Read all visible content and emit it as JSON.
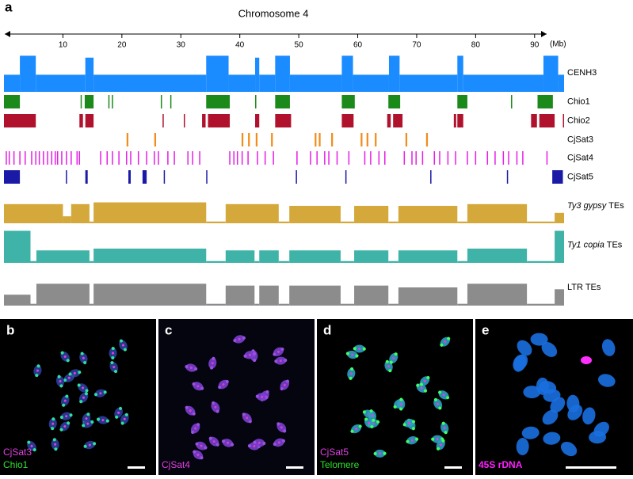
{
  "chart_data": {
    "type": "genome-tracks",
    "panel": "a",
    "title": "Chromosome 4",
    "x_unit": "(Mb)",
    "xlim": [
      0,
      95
    ],
    "xticks": [
      10,
      20,
      30,
      40,
      50,
      60,
      70,
      80,
      90
    ],
    "tracks": [
      {
        "name": "CENH3",
        "color": "#1a8cff",
        "kind": "signal",
        "segments": [
          [
            0,
            2.7,
            0.45
          ],
          [
            2.7,
            5.4,
            0.95
          ],
          [
            5.4,
            13.8,
            0.45
          ],
          [
            13.8,
            15.2,
            0.9
          ],
          [
            15.2,
            34.3,
            0.45
          ],
          [
            34.3,
            38.1,
            0.95
          ],
          [
            38.1,
            42.6,
            0.45
          ],
          [
            42.6,
            43.3,
            0.9
          ],
          [
            43.3,
            46,
            0.45
          ],
          [
            46,
            48.5,
            0.95
          ],
          [
            48.5,
            57.3,
            0.45
          ],
          [
            57.3,
            59.2,
            0.95
          ],
          [
            59.2,
            65.3,
            0.45
          ],
          [
            65.3,
            67.1,
            0.95
          ],
          [
            67.1,
            76.9,
            0.45
          ],
          [
            76.9,
            77.9,
            0.95
          ],
          [
            77.9,
            91.5,
            0.45
          ],
          [
            91.5,
            94,
            0.95
          ],
          [
            94,
            95,
            0.45
          ]
        ]
      },
      {
        "name": "Chio1",
        "color": "#1b8a1b",
        "kind": "intervals",
        "intervals": [
          [
            0,
            2.7
          ],
          [
            13,
            13.2
          ],
          [
            13.7,
            15.2
          ],
          [
            17.7,
            17.9
          ],
          [
            18.3,
            18.5
          ],
          [
            26.6,
            26.8
          ],
          [
            28.2,
            28.4
          ],
          [
            34.3,
            38.3
          ],
          [
            42.6,
            42.8
          ],
          [
            46,
            48.5
          ],
          [
            57.3,
            59.5
          ],
          [
            65.2,
            67.2
          ],
          [
            76.9,
            78.6
          ],
          [
            86,
            86.2
          ],
          [
            90.5,
            93.1
          ]
        ]
      },
      {
        "name": "Chio2",
        "color": "#b0122e",
        "kind": "intervals",
        "intervals": [
          [
            0,
            5.4
          ],
          [
            12.8,
            13.4
          ],
          [
            13.8,
            15.2
          ],
          [
            26.9,
            27.1
          ],
          [
            30.5,
            30.7
          ],
          [
            33.6,
            34.2
          ],
          [
            34.6,
            38.3
          ],
          [
            42.6,
            43.3
          ],
          [
            46,
            48.7
          ],
          [
            57.3,
            59.3
          ],
          [
            65,
            65.6
          ],
          [
            66,
            67.6
          ],
          [
            76.3,
            76.7
          ],
          [
            76.9,
            77.9
          ],
          [
            89.4,
            90.4
          ],
          [
            90.8,
            93.4
          ],
          [
            94.8,
            95
          ]
        ]
      },
      {
        "name": "CjSat3",
        "color": "#f28c1b",
        "kind": "intervals",
        "intervals": [
          [
            20.8,
            21.1
          ],
          [
            25.5,
            25.8
          ],
          [
            40.3,
            40.6
          ],
          [
            41.4,
            41.7
          ],
          [
            42.7,
            43
          ],
          [
            45.3,
            45.6
          ],
          [
            52.7,
            53
          ],
          [
            53.4,
            53.7
          ],
          [
            55.5,
            55.8
          ],
          [
            60.5,
            60.8
          ],
          [
            61.5,
            61.8
          ],
          [
            62.9,
            63.2
          ],
          [
            68.1,
            68.4
          ],
          [
            71.6,
            71.9
          ]
        ]
      },
      {
        "name": "CjSat4",
        "color": "#e61ee6",
        "kind": "positions",
        "positions": [
          0.4,
          0.9,
          1.7,
          2.7,
          3.6,
          4.7,
          5.4,
          6,
          6.7,
          7.4,
          8.1,
          8.7,
          9.1,
          9.8,
          10.6,
          11.4,
          12.4,
          12.8,
          16.4,
          17.5,
          18.4,
          19.5,
          20.8,
          21.5,
          22.8,
          24.2,
          25.5,
          26.2,
          27.8,
          28.9,
          31.2,
          32,
          33.2,
          38.3,
          39,
          39.6,
          40.4,
          41.4,
          43,
          44.3,
          45.7,
          49.7,
          52,
          53.1,
          54.4,
          55.1,
          56.5,
          58.5,
          61.2,
          62.2,
          63.6,
          64.6,
          67.9,
          69.2,
          69.9,
          71,
          73,
          73.9,
          75.3,
          76.6,
          78.6,
          80,
          82,
          83.3,
          84.7,
          85.6,
          87,
          88,
          92.1
        ]
      },
      {
        "name": "CjSat5",
        "color": "#1a1aa6",
        "kind": "intervals",
        "intervals": [
          [
            0,
            2.7
          ],
          [
            10.5,
            10.7
          ],
          [
            13.8,
            14.2
          ],
          [
            21.1,
            21.5
          ],
          [
            23.5,
            24.2
          ],
          [
            27.1,
            27.3
          ],
          [
            34.3,
            34.5
          ],
          [
            49.5,
            49.7
          ],
          [
            57.9,
            58.1
          ],
          [
            72.3,
            72.5
          ],
          [
            85.3,
            85.5
          ],
          [
            93,
            94.8
          ]
        ]
      },
      {
        "name": {
          "italic": "Ty3 gypsy",
          "rest": "TEs"
        },
        "color": "#d4a83a",
        "kind": "signal",
        "segments": [
          [
            0,
            10,
            0.55
          ],
          [
            10,
            11.4,
            0.2
          ],
          [
            11.4,
            14.5,
            0.55
          ],
          [
            14.5,
            15.2,
            0.05
          ],
          [
            15.2,
            34.3,
            0.6
          ],
          [
            34.3,
            37.6,
            0.05
          ],
          [
            37.6,
            46.6,
            0.55
          ],
          [
            46.6,
            48.4,
            0.05
          ],
          [
            48.4,
            57.1,
            0.5
          ],
          [
            57.1,
            59.4,
            0.05
          ],
          [
            59.4,
            65.2,
            0.5
          ],
          [
            65.2,
            66.9,
            0.05
          ],
          [
            66.9,
            76.9,
            0.5
          ],
          [
            76.9,
            78.6,
            0.05
          ],
          [
            78.6,
            88.7,
            0.55
          ],
          [
            88.7,
            93.4,
            0.05
          ],
          [
            93.4,
            95,
            0.3
          ]
        ]
      },
      {
        "name": {
          "italic": "Ty1 copia",
          "rest": "TEs"
        },
        "color": "#3fb3a8",
        "kind": "signal",
        "segments": [
          [
            0,
            4.5,
            0.9
          ],
          [
            4.5,
            5.5,
            0.05
          ],
          [
            5.5,
            14.5,
            0.35
          ],
          [
            14.5,
            15.2,
            0.05
          ],
          [
            15.2,
            34.3,
            0.4
          ],
          [
            34.3,
            37.6,
            0.05
          ],
          [
            37.6,
            42.5,
            0.35
          ],
          [
            42.5,
            43.3,
            0.05
          ],
          [
            43.3,
            46.6,
            0.35
          ],
          [
            46.6,
            48.4,
            0.05
          ],
          [
            48.4,
            57.1,
            0.35
          ],
          [
            57.1,
            59.4,
            0.05
          ],
          [
            59.4,
            65.2,
            0.35
          ],
          [
            65.2,
            66.9,
            0.05
          ],
          [
            66.9,
            76.9,
            0.35
          ],
          [
            76.9,
            78.6,
            0.05
          ],
          [
            78.6,
            88.7,
            0.4
          ],
          [
            88.7,
            93.4,
            0.05
          ],
          [
            93.4,
            95,
            0.9
          ]
        ]
      },
      {
        "name": "LTR TEs",
        "color": "#8c8c8c",
        "kind": "signal",
        "segments": [
          [
            0,
            4.5,
            0.3
          ],
          [
            4.5,
            5.5,
            0.05
          ],
          [
            5.5,
            14.5,
            0.6
          ],
          [
            14.5,
            15.2,
            0.05
          ],
          [
            15.2,
            34.3,
            0.6
          ],
          [
            34.3,
            37.6,
            0.05
          ],
          [
            37.6,
            42.5,
            0.55
          ],
          [
            42.5,
            43.3,
            0.05
          ],
          [
            43.3,
            46.6,
            0.55
          ],
          [
            46.6,
            48.4,
            0.05
          ],
          [
            48.4,
            57.1,
            0.55
          ],
          [
            57.1,
            59.4,
            0.05
          ],
          [
            59.4,
            65.2,
            0.55
          ],
          [
            65.2,
            66.9,
            0.05
          ],
          [
            66.9,
            76.9,
            0.5
          ],
          [
            76.9,
            78.6,
            0.05
          ],
          [
            78.6,
            88.7,
            0.6
          ],
          [
            88.7,
            93.4,
            0.05
          ],
          [
            93.4,
            95,
            0.45
          ]
        ]
      }
    ]
  },
  "images": [
    {
      "panel": "b",
      "labels": [
        {
          "text": "CjSat3",
          "color": "#e040e0"
        },
        {
          "text": "Chio1",
          "color": "#2ee02e"
        }
      ]
    },
    {
      "panel": "c",
      "labels": [
        {
          "text": "CjSat4",
          "color": "#e040e0"
        }
      ]
    },
    {
      "panel": "d",
      "labels": [
        {
          "text": "CjSat5",
          "color": "#e040e0"
        },
        {
          "text": "Telomere",
          "color": "#2ee02e"
        }
      ]
    },
    {
      "panel": "e",
      "labels": [
        {
          "text": "45S rDNA",
          "color": "#ff20ff"
        }
      ]
    }
  ]
}
